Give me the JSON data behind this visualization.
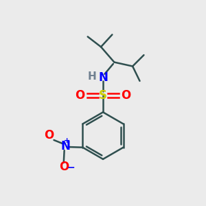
{
  "background_color": "#ebebeb",
  "atom_colors": {
    "C": "#2f4f4f",
    "N": "#0000ff",
    "S": "#cccc00",
    "O": "#ff0000",
    "H": "#708090"
  },
  "bond_color": "#2f4f4f",
  "bond_width": 1.8,
  "figsize": [
    3.0,
    3.0
  ],
  "dpi": 100
}
